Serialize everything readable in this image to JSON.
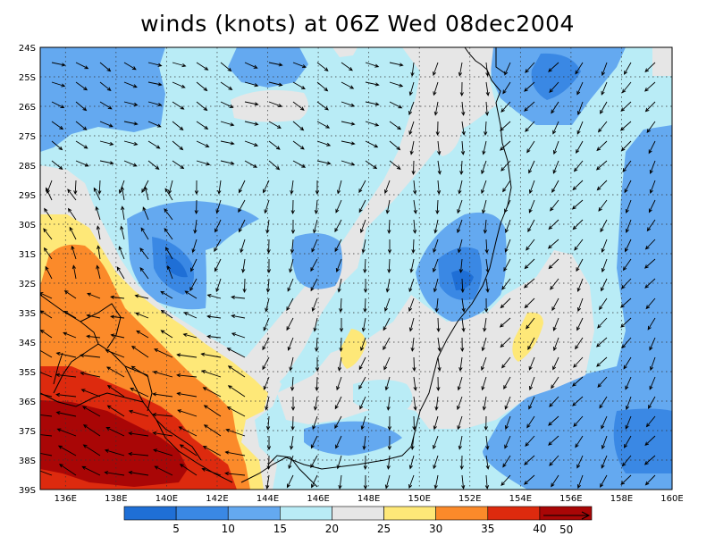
{
  "title": "winds (knots) at 06Z Wed 08dec2004",
  "map": {
    "lon_range": [
      135,
      160
    ],
    "lat_range": [
      24,
      39
    ],
    "lon_ticks": [
      "136E",
      "138E",
      "140E",
      "142E",
      "144E",
      "146E",
      "148E",
      "150E",
      "152E",
      "154E",
      "156E",
      "158E",
      "160E"
    ],
    "lat_ticks": [
      "24S",
      "25S",
      "26S",
      "27S",
      "28S",
      "29S",
      "30S",
      "31S",
      "32S",
      "33S",
      "34S",
      "35S",
      "36S",
      "37S",
      "38S",
      "39S"
    ],
    "field": "wind speed (knots)",
    "gridlines": "dotted",
    "features": [
      "wind vectors",
      "state borders",
      "coastline",
      "contour fill"
    ]
  },
  "colorbar": {
    "labels": [
      "5",
      "10",
      "15",
      "20",
      "25",
      "30",
      "35",
      "40"
    ],
    "levels": [
      0,
      5,
      10,
      15,
      20,
      25,
      30,
      35,
      40,
      45
    ],
    "colors": [
      "#1f6fd6",
      "#3a88e4",
      "#64a9f0",
      "#b9ecf6",
      "#e6e6e6",
      "#fee878",
      "#fb8a2a",
      "#dd2a0e",
      "#a90606"
    ],
    "vector_reference": "50"
  }
}
